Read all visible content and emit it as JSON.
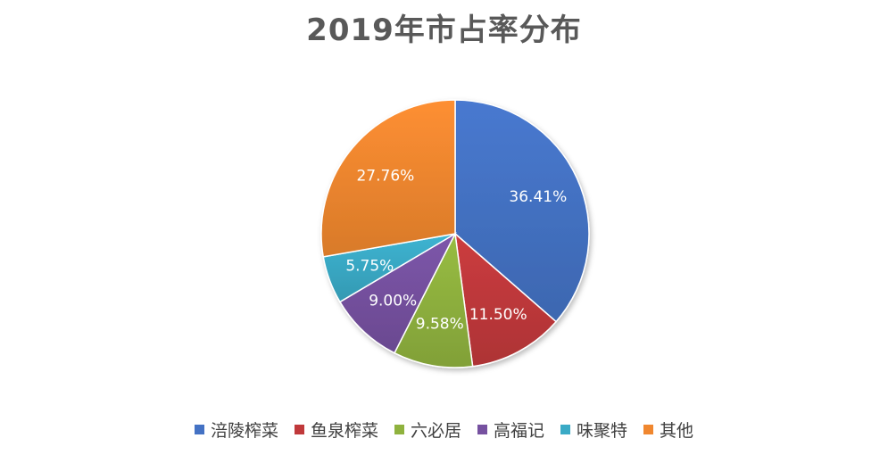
{
  "chart_data": {
    "type": "pie",
    "title": "2019年市占率分布",
    "categories": [
      "涪陵榨菜",
      "鱼泉榨菜",
      "六必居",
      "高福记",
      "味聚特",
      "其他"
    ],
    "values": [
      36.41,
      11.5,
      9.58,
      9.0,
      5.75,
      27.76
    ],
    "labels": [
      "36.41%",
      "11.50%",
      "9.58%",
      "9.00%",
      "5.75%",
      "27.76%"
    ],
    "colors": [
      "#4472C4",
      "#C0393B",
      "#8FB23E",
      "#7651A0",
      "#3AAAC6",
      "#F0872F"
    ],
    "legend_position": "bottom"
  }
}
